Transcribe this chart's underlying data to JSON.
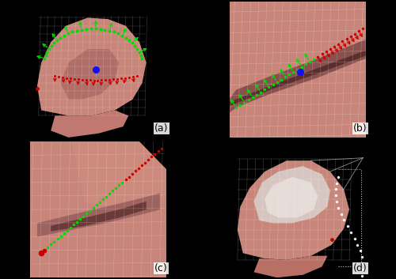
{
  "figure_size": [
    5.0,
    3.53
  ],
  "dpi": 100,
  "background_color": "#000000",
  "labels": [
    "(a)",
    "(b)",
    "(c)",
    "(d)"
  ],
  "label_fontsize": 9,
  "green_color": "#00dd00",
  "red_color": "#cc0000",
  "blue_dot_color": "#1111ee",
  "brain_main": "#c8857a",
  "brain_dark": "#7a4040",
  "brain_shadow": "#9a6060",
  "brain_light": "#d8a090",
  "mesh_color": "#ffffff",
  "mesh_alpha": 0.32,
  "black": "#000000"
}
